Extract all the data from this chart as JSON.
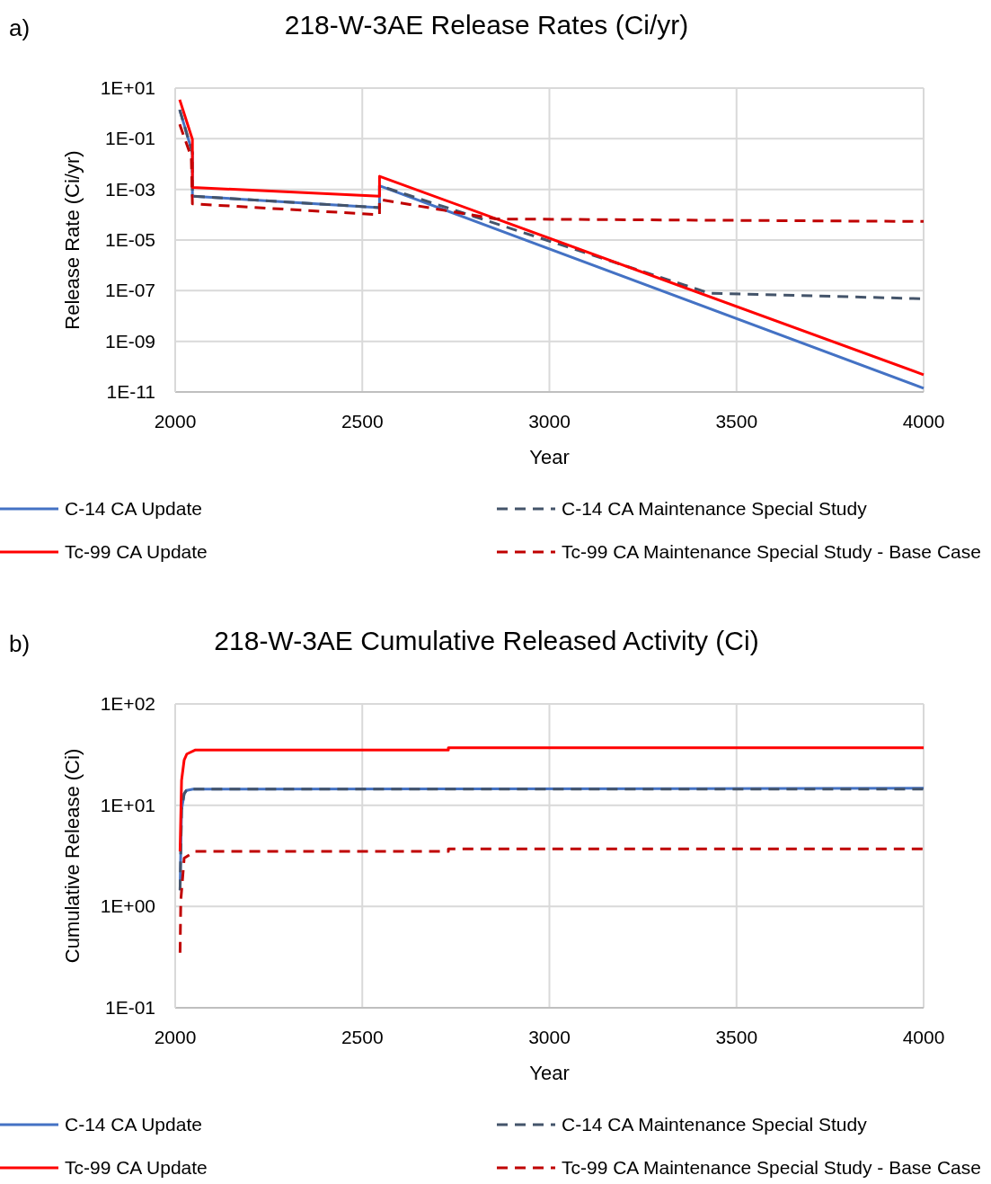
{
  "chart_data": [
    {
      "type": "line",
      "title": "218-W-3AE Release Rates (Ci/yr)",
      "xlabel": "Year",
      "ylabel": "Release Rate (Ci/yr)",
      "annotations": [
        "a)"
      ],
      "log": "y",
      "grid": true,
      "legend": "bottom",
      "xlim": [
        2000,
        4000
      ],
      "xticks": [
        2000,
        2500,
        3000,
        3500,
        4000
      ],
      "ylim": [
        1e-11,
        10
      ],
      "yticks": [
        {
          "value": 10,
          "label": "1E+01"
        },
        {
          "value": 0.1,
          "label": "1E-01"
        },
        {
          "value": 0.001,
          "label": "1E-03"
        },
        {
          "value": 1e-05,
          "label": "1E-05"
        },
        {
          "value": 1e-07,
          "label": "1E-07"
        },
        {
          "value": 1e-09,
          "label": "1E-09"
        },
        {
          "value": 1e-11,
          "label": "1E-11"
        }
      ],
      "series": [
        {
          "name": "C-14 CA Update",
          "color": "#4472c4",
          "line_style": "solid",
          "x": [
            2012,
            2046,
            2046,
            2546,
            2546,
            4000
          ],
          "values": [
            1.4,
            0.028,
            0.00054,
            0.00019,
            0.0014,
            1.4e-11
          ]
        },
        {
          "name": "C-14 CA Maintenance Special Study",
          "color": "#44546a",
          "line_style": "dashed",
          "x": [
            2012,
            2046,
            2046,
            2546,
            2546,
            3427,
            4000
          ],
          "values": [
            1.4,
            0.028,
            0.00054,
            0.00019,
            0.0014,
            8e-08,
            4.8e-08
          ]
        },
        {
          "name": "Tc-99 CA Update",
          "color": "#ff0000",
          "line_style": "solid",
          "x": [
            2012,
            2046,
            2046,
            2546,
            2546,
            4000
          ],
          "values": [
            3.5,
            0.095,
            0.0012,
            0.00054,
            0.0033,
            4.8e-11
          ]
        },
        {
          "name": "Tc-99 CA Maintenance Special Study - Base Case",
          "color": "#c00000",
          "line_style": "dashed",
          "x": [
            2012,
            2043,
            2046,
            2546,
            2546,
            2857,
            4000
          ],
          "values": [
            0.37,
            0.019,
            0.00027,
            0.0001,
            0.0004,
            6.8e-05,
            5.4e-05
          ]
        }
      ]
    },
    {
      "type": "line",
      "title": "218-W-3AE Cumulative Released Activity (Ci)",
      "xlabel": "Year",
      "ylabel": "Cumulative Release (Ci)",
      "annotations": [
        "b)"
      ],
      "log": "y",
      "grid": true,
      "legend": "bottom",
      "xlim": [
        2000,
        4000
      ],
      "xticks": [
        2000,
        2500,
        3000,
        3500,
        4000
      ],
      "ylim": [
        0.1,
        100
      ],
      "yticks": [
        {
          "value": 100,
          "label": "1E+02"
        },
        {
          "value": 10,
          "label": "1E+01"
        },
        {
          "value": 1,
          "label": "1E+00"
        },
        {
          "value": 0.1,
          "label": "1E-01"
        }
      ],
      "series": [
        {
          "name": "C-14 CA Update",
          "color": "#4472c4",
          "line_style": "solid",
          "x": [
            2013,
            2017,
            2024,
            2030,
            2048,
            4000
          ],
          "values": [
            1.45,
            9,
            13,
            14,
            14.4,
            14.7
          ]
        },
        {
          "name": "C-14 CA Maintenance Special Study",
          "color": "#44546a",
          "line_style": "dashed",
          "x": [
            2013,
            2017,
            2024,
            2030,
            2048,
            4000
          ],
          "values": [
            1.45,
            9,
            13,
            14,
            14.4,
            14.4
          ]
        },
        {
          "name": "Tc-99 CA Update",
          "color": "#ff0000",
          "line_style": "solid",
          "x": [
            2013,
            2017,
            2024,
            2031,
            2053,
            2730,
            2730,
            4000
          ],
          "values": [
            3.5,
            17.6,
            28,
            32,
            35,
            35,
            37,
            37
          ]
        },
        {
          "name": "Tc-99 CA Maintenance Special Study - Base Case",
          "color": "#c00000",
          "line_style": "dashed",
          "x": [
            2013,
            2015,
            2024,
            2053,
            2730,
            2730,
            4000
          ],
          "values": [
            0.35,
            1.15,
            3.0,
            3.5,
            3.5,
            3.7,
            3.7
          ]
        }
      ]
    }
  ]
}
